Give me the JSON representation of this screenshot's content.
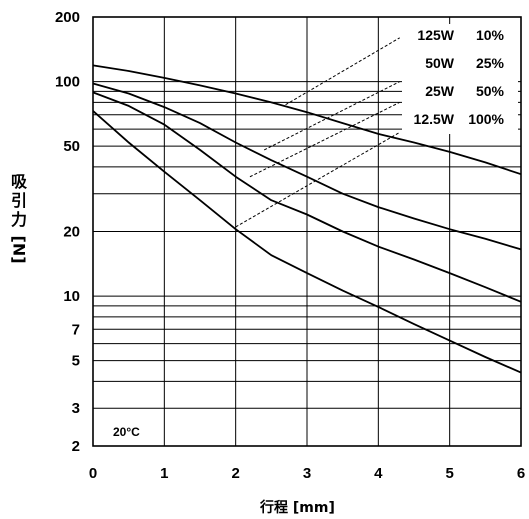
{
  "chart_data": {
    "type": "line",
    "xlabel": "行程 [mm]",
    "ylabel_main": "吸引力",
    "ylabel_unit": "[N]",
    "x_ticks": [
      "0",
      "1",
      "2",
      "3",
      "4",
      "5",
      "6"
    ],
    "y_ticks": [
      "2",
      "3",
      "5",
      "7",
      "10",
      "20",
      "50",
      "100",
      "200"
    ],
    "x_range": [
      0,
      6
    ],
    "y_range": [
      2,
      200
    ],
    "y_scale": "log",
    "grid": true,
    "annotation": "20°C",
    "legend": [
      {
        "power": "125W",
        "duty": "10%"
      },
      {
        "power": "50W",
        "duty": "25%"
      },
      {
        "power": "25W",
        "duty": "50%"
      },
      {
        "power": "12.5W",
        "duty": "100%"
      }
    ],
    "series": [
      {
        "name": "125W 10%",
        "x": [
          0,
          0.5,
          1,
          1.5,
          2,
          2.5,
          3,
          3.5,
          4,
          4.5,
          5,
          5.5,
          6
        ],
        "y": [
          119,
          112,
          104,
          96,
          88,
          80,
          72,
          64,
          57,
          52,
          47,
          42,
          37
        ]
      },
      {
        "name": "50W 25%",
        "x": [
          0,
          0.5,
          1,
          1.5,
          2,
          2.5,
          3,
          3.5,
          4,
          4.5,
          5,
          5.5,
          6
        ],
        "y": [
          98,
          88,
          76,
          64,
          52,
          43,
          36,
          30,
          26,
          23,
          20.5,
          18.5,
          16.5
        ]
      },
      {
        "name": "25W 50%",
        "x": [
          0,
          0.5,
          1,
          1.5,
          2,
          2.5,
          3,
          3.5,
          4,
          4.5,
          5,
          5.5,
          6
        ],
        "y": [
          89,
          77,
          63,
          48,
          36,
          28,
          24,
          20,
          17,
          14.8,
          12.8,
          11,
          9.4
        ]
      },
      {
        "name": "12.5W 100%",
        "x": [
          0,
          0.5,
          1,
          1.5,
          2,
          2.5,
          3,
          3.5,
          4,
          4.5,
          5,
          5.5,
          6
        ],
        "y": [
          73,
          52,
          38,
          28,
          20.5,
          15.5,
          12.8,
          10.6,
          8.9,
          7.4,
          6.2,
          5.2,
          4.4
        ]
      }
    ],
    "leaders": [
      {
        "from": [
          2.7,
          78
        ],
        "to": [
          4.3,
          160
        ]
      },
      {
        "from": [
          2.4,
          48
        ],
        "to": [
          4.3,
          100
        ]
      },
      {
        "from": [
          2.2,
          36
        ],
        "to": [
          4.3,
          80
        ]
      },
      {
        "from": [
          2.0,
          21
        ],
        "to": [
          4.3,
          58
        ]
      }
    ]
  }
}
